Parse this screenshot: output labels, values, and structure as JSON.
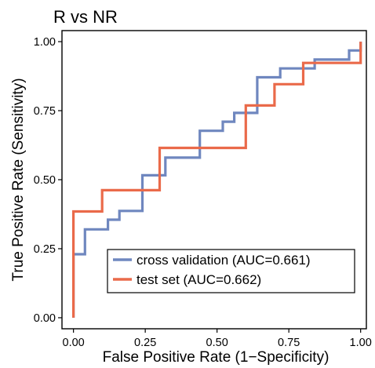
{
  "chart_data": {
    "type": "line",
    "title": "R vs NR",
    "xlabel": "False Positive Rate (1−Specificity)",
    "ylabel": "True Positive Rate (Sensitivity)",
    "xlim": [
      -0.04,
      1.02
    ],
    "ylim": [
      -0.04,
      1.04
    ],
    "xticks": [
      0.0,
      0.25,
      0.5,
      0.75,
      1.0
    ],
    "xtick_labels": [
      "0.00",
      "0.25",
      "0.50",
      "0.75",
      "1.00"
    ],
    "yticks": [
      0.0,
      0.25,
      0.5,
      0.75,
      1.0
    ],
    "ytick_labels": [
      "0.00",
      "0.25",
      "0.50",
      "0.75",
      "1.00"
    ],
    "grid": false,
    "legend_position": "bottom-right",
    "series": [
      {
        "name": "cross validation (AUC=0.661)",
        "color": "#6f87bf",
        "x": [
          0.0,
          0.0,
          0.04,
          0.04,
          0.12,
          0.12,
          0.16,
          0.16,
          0.24,
          0.24,
          0.32,
          0.32,
          0.44,
          0.44,
          0.52,
          0.52,
          0.56,
          0.56,
          0.64,
          0.64,
          0.72,
          0.72,
          0.8,
          0.8,
          0.84,
          0.84,
          0.88,
          0.88,
          0.96,
          0.96,
          1.0,
          1.0
        ],
        "y": [
          0.0,
          0.23,
          0.23,
          0.32,
          0.32,
          0.355,
          0.355,
          0.387,
          0.387,
          0.516,
          0.516,
          0.58,
          0.58,
          0.677,
          0.677,
          0.71,
          0.71,
          0.742,
          0.742,
          0.871,
          0.871,
          0.903,
          0.903,
          0.903,
          0.903,
          0.935,
          0.935,
          0.935,
          0.935,
          0.968,
          0.968,
          1.0
        ]
      },
      {
        "name": "test set (AUC=0.662)",
        "color": "#ea6a4a",
        "x": [
          0.0,
          0.0,
          0.1,
          0.1,
          0.3,
          0.3,
          0.6,
          0.6,
          0.7,
          0.7,
          0.8,
          0.8,
          0.9,
          0.9,
          1.0,
          1.0
        ],
        "y": [
          0.0,
          0.385,
          0.385,
          0.462,
          0.462,
          0.615,
          0.615,
          0.769,
          0.769,
          0.846,
          0.846,
          0.923,
          0.923,
          0.923,
          0.923,
          1.0
        ]
      }
    ]
  }
}
